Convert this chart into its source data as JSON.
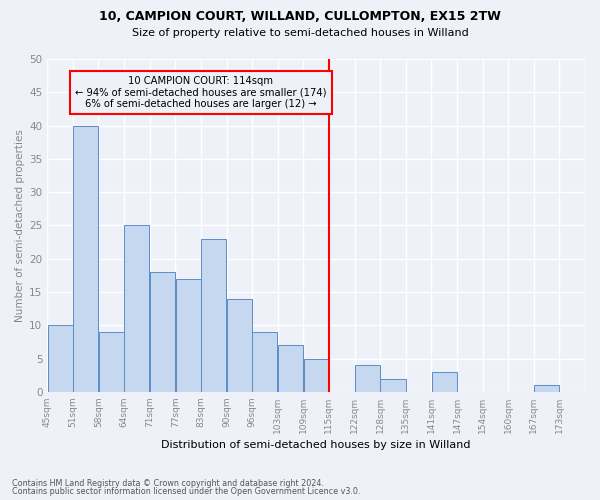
{
  "title1": "10, CAMPION COURT, WILLAND, CULLOMPTON, EX15 2TW",
  "title2": "Size of property relative to semi-detached houses in Willand",
  "xlabel": "Distribution of semi-detached houses by size in Willand",
  "ylabel": "Number of semi-detached properties",
  "categories": [
    "45sqm",
    "51sqm",
    "58sqm",
    "64sqm",
    "71sqm",
    "77sqm",
    "83sqm",
    "90sqm",
    "96sqm",
    "103sqm",
    "109sqm",
    "115sqm",
    "122sqm",
    "128sqm",
    "135sqm",
    "141sqm",
    "147sqm",
    "154sqm",
    "160sqm",
    "167sqm",
    "173sqm"
  ],
  "values": [
    10,
    40,
    9,
    25,
    18,
    17,
    23,
    14,
    9,
    7,
    5,
    0,
    4,
    2,
    0,
    3,
    0,
    0,
    0,
    1,
    0
  ],
  "bar_color": "#c5d8f0",
  "bar_edge_color": "#5b8dc8",
  "property_line_x": 11,
  "bin_width": 1,
  "annotation_text": "10 CAMPION COURT: 114sqm\n← 94% of semi-detached houses are smaller (174)\n6% of semi-detached houses are larger (12) →",
  "annotation_box_color": "red",
  "vline_color": "red",
  "footer1": "Contains HM Land Registry data © Crown copyright and database right 2024.",
  "footer2": "Contains public sector information licensed under the Open Government Licence v3.0.",
  "ylim": [
    0,
    50
  ],
  "yticks": [
    0,
    5,
    10,
    15,
    20,
    25,
    30,
    35,
    40,
    45,
    50
  ],
  "background_color": "#eef2f8",
  "grid_color": "white"
}
